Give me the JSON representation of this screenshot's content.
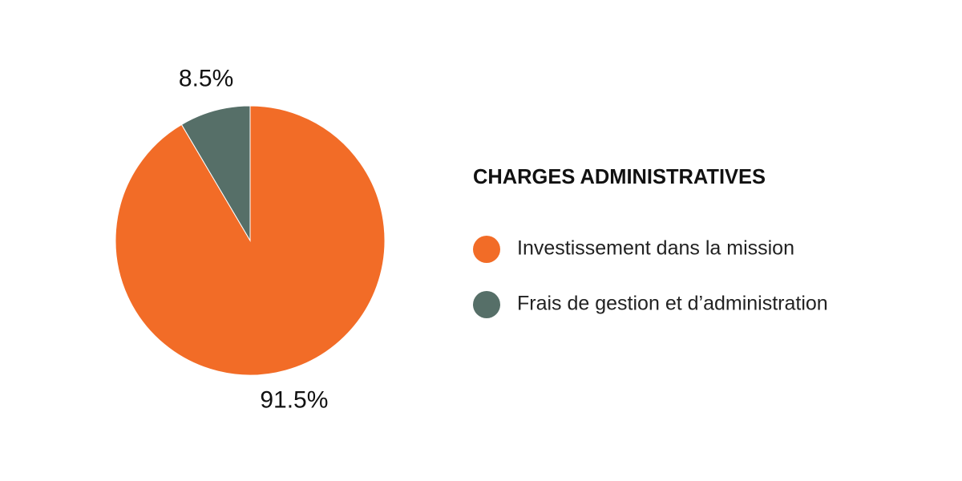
{
  "chart_data": {
    "type": "pie",
    "title": "CHARGES ADMINISTRATIVES",
    "categories": [
      "Investissement dans la mission",
      "Frais de gestion et d’administration"
    ],
    "values": [
      91.5,
      8.5
    ],
    "value_labels": [
      "91.5%",
      "8.5%"
    ],
    "colors": [
      "#f26c27",
      "#566f68"
    ],
    "legend": "right"
  }
}
